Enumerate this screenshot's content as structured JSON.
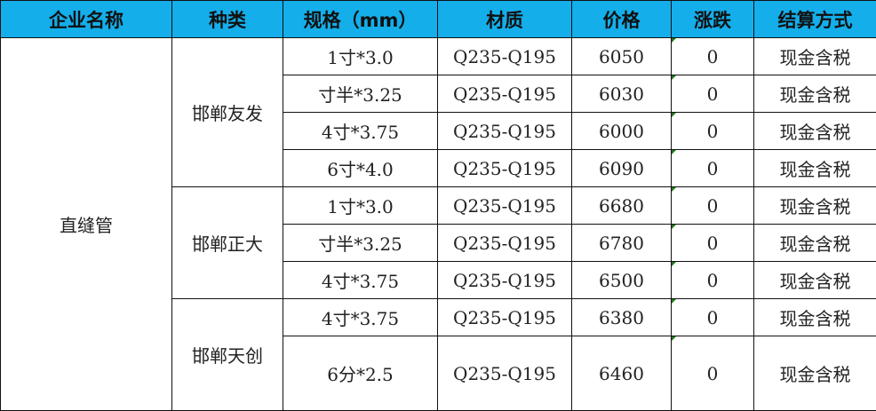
{
  "headers": [
    "企业名称",
    "种类",
    "规格（mm）",
    "材质",
    "价格",
    "涨跌",
    "结算方式"
  ],
  "company": "直缝管",
  "groups": [
    {
      "name": "邯郸友发"
    },
    {
      "name": "邯郸正大"
    },
    {
      "name": "邯郸天创"
    }
  ],
  "rows": [
    {
      "spec": "1寸*3.0",
      "material": "Q235-Q195",
      "price": "6050",
      "change": "0",
      "settlement": "现金含税"
    },
    {
      "spec": "寸半*3.25",
      "material": "Q235-Q195",
      "price": "6030",
      "change": "0",
      "settlement": "现金含税"
    },
    {
      "spec": "4寸*3.75",
      "material": "Q235-Q195",
      "price": "6000",
      "change": "0",
      "settlement": "现金含税"
    },
    {
      "spec": "6寸*4.0",
      "material": "Q235-Q195",
      "price": "6090",
      "change": "0",
      "settlement": "现金含税"
    },
    {
      "spec": "1寸*3.0",
      "material": "Q235-Q195",
      "price": "6680",
      "change": "0",
      "settlement": "现金含税"
    },
    {
      "spec": "寸半*3.25",
      "material": "Q235-Q195",
      "price": "6780",
      "change": "0",
      "settlement": "现金含税"
    },
    {
      "spec": "4寸*3.75",
      "material": "Q235-Q195",
      "price": "6500",
      "change": "0",
      "settlement": "现金含税"
    },
    {
      "spec": "4寸*3.75",
      "material": "Q235-Q195",
      "price": "6380",
      "change": "0",
      "settlement": "现金含税"
    },
    {
      "spec": "6分*2.5",
      "material": "Q235-Q195",
      "price": "6460",
      "change": "0",
      "settlement": "现金含税"
    }
  ],
  "colors": {
    "header_bg": "#14aeea"
  }
}
